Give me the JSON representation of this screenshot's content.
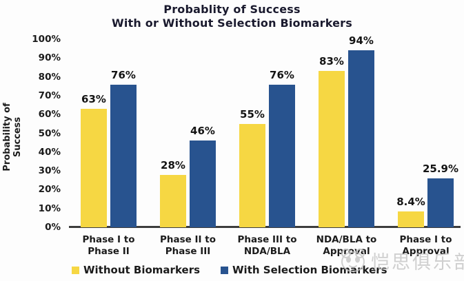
{
  "chart_data": {
    "type": "bar",
    "title_line1": "Probablity of Success",
    "title_line2": "With or Without Selection Biomarkers",
    "ylabel": "Probability of Success",
    "ylim": [
      0,
      100
    ],
    "yticks": [
      "0%",
      "10%",
      "20%",
      "30%",
      "40%",
      "50%",
      "60%",
      "70%",
      "80%",
      "90%",
      "100%"
    ],
    "grid": false,
    "legend_position": "bottom",
    "categories": [
      {
        "line1": "Phase I to",
        "line2": "Phase II"
      },
      {
        "line1": "Phase II to",
        "line2": "Phase III"
      },
      {
        "line1": "Phase III to",
        "line2": "NDA/BLA"
      },
      {
        "line1": "NDA/BLA to",
        "line2": "Approval"
      },
      {
        "line1": "Phase I to",
        "line2": "Approval"
      }
    ],
    "series": [
      {
        "name": "Without Biomarkers",
        "color": "#F6D743",
        "values": [
          63,
          28,
          55,
          83,
          8.4
        ],
        "labels": [
          "63%",
          "28%",
          "55%",
          "83%",
          "8.4%"
        ]
      },
      {
        "name": "With Selection Biomarkers",
        "color": "#28538F",
        "values": [
          76,
          46,
          76,
          94,
          25.9
        ],
        "labels": [
          "76%",
          "46%",
          "76%",
          "94%",
          "25.9%"
        ]
      }
    ]
  },
  "watermark": {
    "text": "恺思俱乐部",
    "icon": "panda-face-icon",
    "color": "#c4c4c4"
  }
}
